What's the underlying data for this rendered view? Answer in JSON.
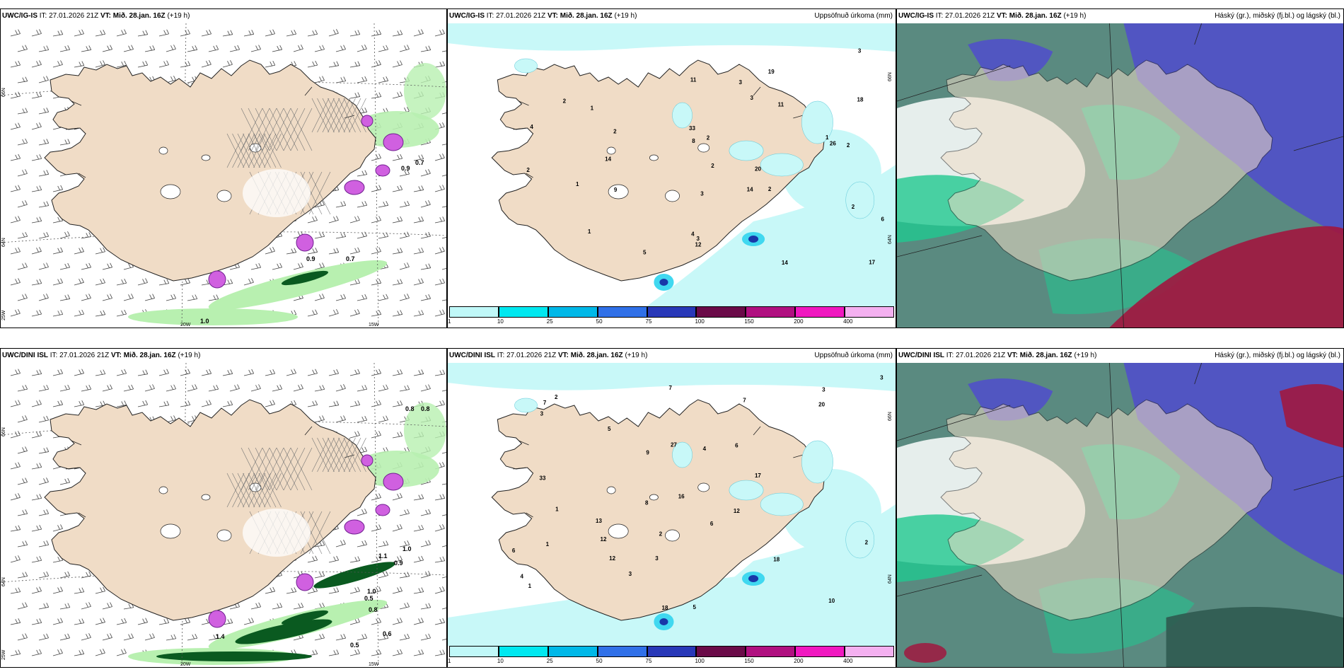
{
  "panels": [
    {
      "model": "UWC/IG-IS",
      "it": "IT: 27.01.2026 21Z",
      "vt": "VT: Mið. 28.jan. 16Z",
      "lead": "(+19 h)",
      "right": "",
      "kind": "wind",
      "lat_labels": [
        "66N",
        "64N"
      ],
      "lon_labels": [
        "20W",
        "15W"
      ],
      "extra_lon": "25W",
      "values": [
        "0.7",
        "0.9",
        "0.7",
        "0.9",
        "1.0"
      ]
    },
    {
      "model": "UWC/IG-IS",
      "it": "IT: 27.01.2026 21Z",
      "vt": "VT: Mið. 28.jan. 16Z",
      "lead": "(+19 h)",
      "right": "Uppsöfnuð úrkoma (mm)",
      "kind": "precip",
      "lat_labels": [
        "66N",
        "64N"
      ],
      "values": [
        "2",
        "1",
        "2",
        "3",
        "1",
        "2",
        "1",
        "2",
        "3",
        "5",
        "3",
        "2",
        "1",
        "2",
        "3",
        "18",
        "14",
        "17",
        "19",
        "11",
        "14",
        "20",
        "14",
        "26",
        "12",
        "11",
        "33",
        "2",
        "3",
        "4",
        "6",
        "8",
        "9",
        "4",
        "2"
      ]
    },
    {
      "model": "UWC/IG-IS",
      "it": "IT: 27.01.2026 21Z",
      "vt": "VT: Mið. 28.jan. 16Z",
      "lead": "(+19 h)",
      "right": "Háský (gr.), miðský (fj.bl.) og lágský (bl.)",
      "kind": "cloud"
    },
    {
      "model": "UWC/DINI ISL",
      "it": "IT: 27.01.2026 21Z",
      "vt": "VT: Mið. 28.jan. 16Z",
      "lead": "(+19 h)",
      "right": "",
      "kind": "wind",
      "lat_labels": [
        "66N",
        "64N"
      ],
      "lon_labels": [
        "20W",
        "15W"
      ],
      "extra_lon": "25W",
      "values": [
        "0.8",
        "0.8",
        "1.0",
        "0.9",
        "1.0",
        "1.1",
        "0.5",
        "0.8",
        "0.6",
        "0.5",
        "1.4"
      ]
    },
    {
      "model": "UWC/DINI ISL",
      "it": "IT: 27.01.2026 21Z",
      "vt": "VT: Mið. 28.jan. 16Z",
      "lead": "(+19 h)",
      "right": "Uppsöfnuð úrkoma (mm)",
      "kind": "precip",
      "lat_labels": [
        "66N",
        "64N"
      ],
      "values": [
        "3",
        "4",
        "3",
        "2",
        "6",
        "5",
        "1",
        "2",
        "3",
        "4",
        "3",
        "7",
        "1",
        "3",
        "6",
        "5",
        "18",
        "17",
        "33",
        "10",
        "16",
        "13",
        "12",
        "20",
        "27",
        "18",
        "6",
        "12",
        "7",
        "7",
        "12",
        "9",
        "8",
        "2",
        "1"
      ]
    },
    {
      "model": "UWC/DINI ISL",
      "it": "IT: 27.01.2026 21Z",
      "vt": "VT: Mið. 28.jan. 16Z",
      "lead": "(+19 h)",
      "right": "Háský (gr.), miðský (fj.bl.) og lágský (bl.)",
      "kind": "cloud"
    }
  ],
  "colorbar": {
    "ticks": [
      "1",
      "10",
      "25",
      "50",
      "75",
      "100",
      "150",
      "200",
      "400"
    ],
    "colors": [
      "#c0f8f8",
      "#00e8f0",
      "#00b8e8",
      "#3070e8",
      "#2838b8",
      "#6a0a48",
      "#b01080",
      "#f018c0",
      "#f4b0f0"
    ]
  },
  "colors": {
    "land": "#f0dcc6",
    "coast": "#222222",
    "precip_light": "#c8f8f8",
    "precip_mid": "#40d8f0",
    "precip_heavy": "#1838a8",
    "wind_green": "#b8f0b0",
    "wind_dark": "#0a5a20",
    "high_cloud": "#5a8a80",
    "mid_cloud": "#20c890",
    "low_cloud": "#5050c8",
    "red_cloud": "#a01840",
    "magenta": "#d060e0"
  }
}
